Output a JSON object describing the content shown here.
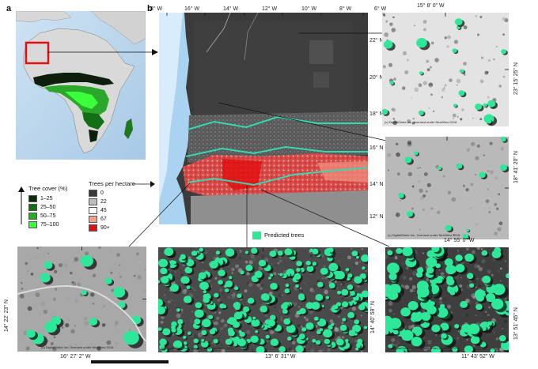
{
  "panel_a": {
    "letter": "a"
  },
  "panel_b": {
    "letter": "b",
    "top_lon_labels": [
      "18° W",
      "16° W",
      "14° W",
      "12° W",
      "10° W",
      "8° W",
      "6° W"
    ],
    "right_lat_labels": [
      "22° N",
      "20° N",
      "18° N",
      "16° N",
      "14° N",
      "12° N"
    ]
  },
  "tree_cover_legend": {
    "title": "Tree cover (%)",
    "items": [
      {
        "label": "1–25",
        "color": "#0a2a0a"
      },
      {
        "label": "25–50",
        "color": "#136f13"
      },
      {
        "label": "50–75",
        "color": "#22b022"
      },
      {
        "label": "75–100",
        "color": "#3cff3c"
      }
    ]
  },
  "trees_legend": {
    "title": "Trees per hectare",
    "items": [
      {
        "label": "0",
        "color": "#3a3a3a"
      },
      {
        "label": "22",
        "color": "#bdbdbd"
      },
      {
        "label": "45",
        "color": "#ffffff"
      },
      {
        "label": "67",
        "color": "#f4a08c"
      },
      {
        "label": "90+",
        "color": "#e01010"
      }
    ]
  },
  "predicted_legend": {
    "label": "Predicted trees",
    "color": "#2ee89a"
  },
  "insets": {
    "top_right": {
      "lon": "15° 8' 0\" W",
      "lat": "23° 15' 25\" N",
      "credit": "(c) DigitalGlobe Inc., licensed under NextView 2018"
    },
    "mid_right": {
      "lon": "14° 55' 0\" W",
      "lat": "18° 41' 20\" N",
      "credit": "(c) DigitalGlobe Inc., licensed under NextView 2018"
    },
    "bottom_left": {
      "lon": "16° 27' 2\" W",
      "lat": "14° 22' 23\" N",
      "credit": "(c) DigitalGlobe Inc., licensed under NextView 2018"
    },
    "bottom_center": {
      "lon": "13° 6' 31\" W",
      "lat": "14° 40' 59\" N",
      "credit": "(c) DigitalGlobe Inc., licensed under NextView 2018"
    },
    "bottom_right": {
      "lon": "11° 43' 52\" W",
      "lat": "13° 51' 45\" N",
      "credit": "(c) DigitalGlobe Inc., licensed under NextView 2018"
    }
  },
  "colors": {
    "ocean": "#a9d3f0",
    "land_dark": "#3b3b3b",
    "tree_green": "#2ee89a",
    "boundary": "#36d8b0"
  }
}
